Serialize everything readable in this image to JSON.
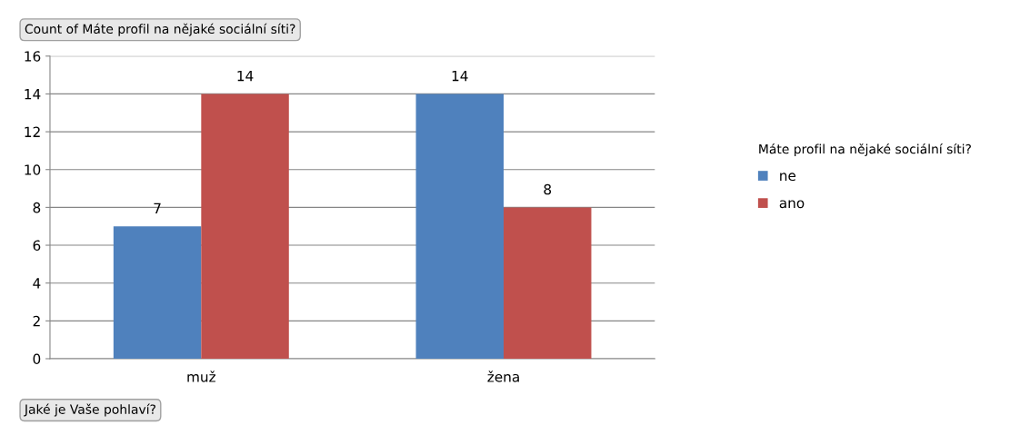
{
  "chart_data": {
    "type": "bar",
    "title": "Count of Máte profil na nějaké sociální síti?",
    "legend_title": "Máte profil na nějaké sociální síti?",
    "annotations": [
      "Jaké je Vaše pohlaví?"
    ],
    "categories": [
      "muž",
      "žena"
    ],
    "series": [
      {
        "name": "ne",
        "color": "#4f81bd",
        "values": [
          7,
          14
        ]
      },
      {
        "name": "ano",
        "color": "#c0504d",
        "values": [
          14,
          8
        ]
      }
    ],
    "ylim": [
      0,
      16
    ],
    "yticks": [
      0,
      2,
      4,
      6,
      8,
      10,
      12,
      14,
      16
    ],
    "grid": "y",
    "legend": "right",
    "data_labels": true
  }
}
